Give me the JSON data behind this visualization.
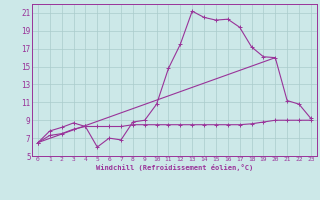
{
  "xlabel": "Windchill (Refroidissement éolien,°C)",
  "background_color": "#cce8e8",
  "grid_color": "#aacccc",
  "line_color": "#993399",
  "xlim": [
    -0.5,
    23.5
  ],
  "ylim": [
    5,
    22
  ],
  "xticks": [
    0,
    1,
    2,
    3,
    4,
    5,
    6,
    7,
    8,
    9,
    10,
    11,
    12,
    13,
    14,
    15,
    16,
    17,
    18,
    19,
    20,
    21,
    22,
    23
  ],
  "yticks": [
    5,
    7,
    9,
    11,
    13,
    15,
    17,
    19,
    21
  ],
  "curve1_x": [
    0,
    1,
    2,
    3,
    4,
    5,
    6,
    7,
    8,
    9,
    10,
    11,
    12,
    13,
    14,
    15,
    16,
    17,
    18,
    19,
    20,
    21,
    22,
    23
  ],
  "curve1_y": [
    6.5,
    7.8,
    8.2,
    8.7,
    8.3,
    6.0,
    7.0,
    6.8,
    8.8,
    9.0,
    10.8,
    14.8,
    17.5,
    21.2,
    20.5,
    20.2,
    20.3,
    19.4,
    17.2,
    16.1,
    16.0,
    11.2,
    10.8,
    9.2
  ],
  "curve2_x": [
    0,
    1,
    2,
    3,
    4,
    5,
    6,
    7,
    8,
    9,
    10,
    11,
    12,
    13,
    14,
    15,
    16,
    17,
    18,
    19,
    20,
    21,
    22,
    23
  ],
  "curve2_y": [
    6.5,
    7.3,
    7.5,
    8.0,
    8.3,
    8.3,
    8.3,
    8.3,
    8.5,
    8.5,
    8.5,
    8.5,
    8.5,
    8.5,
    8.5,
    8.5,
    8.5,
    8.5,
    8.6,
    8.8,
    9.0,
    9.0,
    9.0,
    9.0
  ],
  "curve3_x": [
    0,
    20
  ],
  "curve3_y": [
    6.5,
    16.0
  ]
}
